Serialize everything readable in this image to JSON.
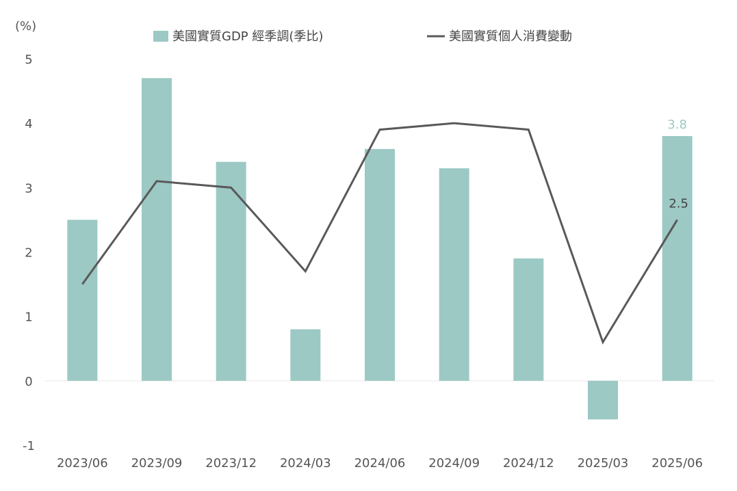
{
  "chart_data": {
    "type": "bar",
    "unit_label": "(%)",
    "categories": [
      "2023/06",
      "2023/09",
      "2023/12",
      "2024/03",
      "2024/06",
      "2024/09",
      "2024/12",
      "2025/03",
      "2025/06"
    ],
    "ylim": [
      -1,
      5
    ],
    "yticks": [
      "-1",
      "0",
      "1",
      "2",
      "3",
      "4",
      "5"
    ],
    "grid": false,
    "legend_position": "top",
    "series": [
      {
        "name": "美國實質GDP 經季調(季比)",
        "kind": "bar",
        "color": "#9cc9c4",
        "values": [
          2.5,
          4.7,
          3.4,
          0.8,
          3.6,
          3.3,
          1.9,
          -0.6,
          3.8
        ],
        "last_label": "3.8"
      },
      {
        "name": "美國實質個人消費變動",
        "kind": "line",
        "color": "#595959",
        "values": [
          1.5,
          3.1,
          3.0,
          1.7,
          3.9,
          4.0,
          3.9,
          0.6,
          2.5
        ],
        "last_label": "2.5"
      }
    ]
  }
}
